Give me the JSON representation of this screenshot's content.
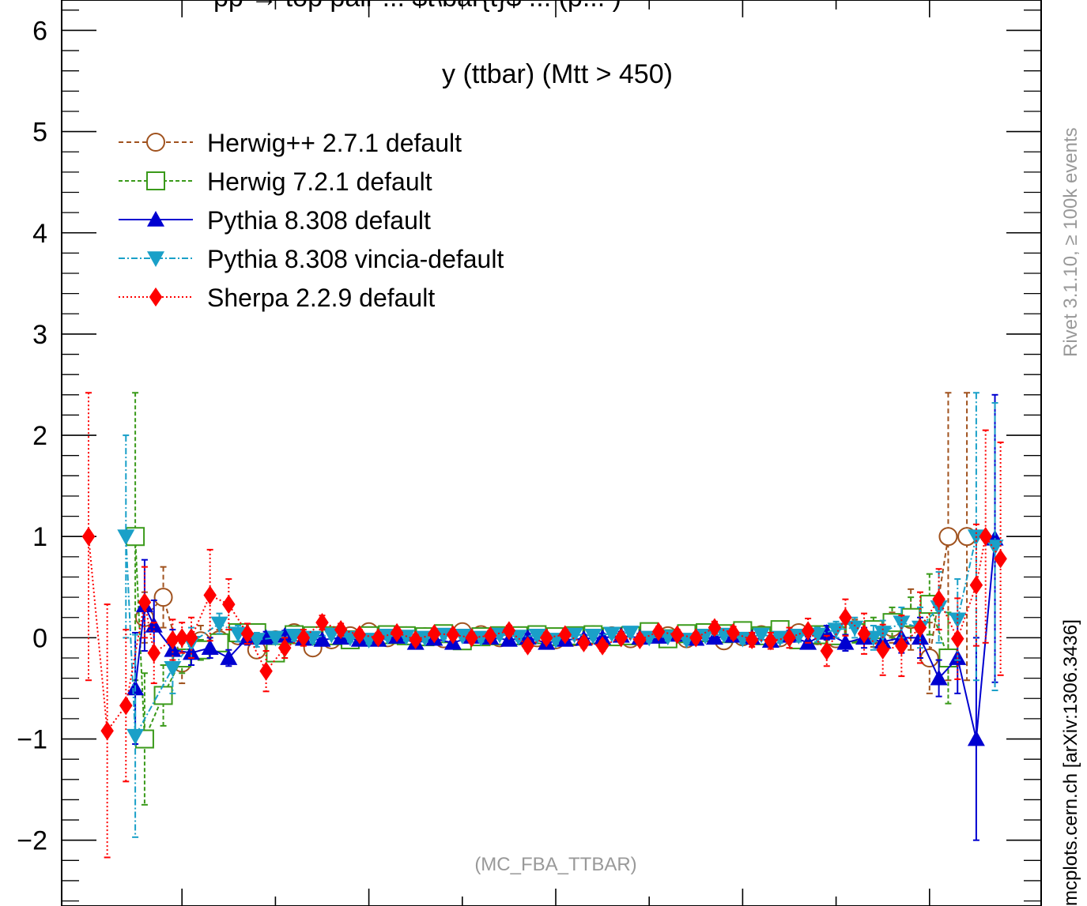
{
  "chart_data": {
    "type": "line",
    "title": "y (ttbar) (Mtt > 450)",
    "top_title_fragment": "pp → top pair ... $t\\bar{t}$ ... (p... )",
    "watermark_left": "(MC_FBA_TTBAR)",
    "side_label_top": "Rivet 3.1.10, ≥ 100k events",
    "side_label_bottom": "mcplots.cern.ch [arXiv:1306.3436]",
    "ylim": [
      -2.65,
      6.3
    ],
    "xlim": [
      -2.5,
      2.5
    ],
    "y_ticks": [
      -2,
      -1,
      0,
      1,
      2,
      3,
      4,
      5,
      6
    ],
    "y_tick_labels": [
      "−2",
      "−1",
      "0",
      "1",
      "2",
      "3",
      "4",
      "5",
      "6"
    ],
    "legend_position": "top-left",
    "series": [
      {
        "name": "Herwig++ 2.7.1 default",
        "color": "#a0521e",
        "marker": "circle-open",
        "dash": "6,4",
        "x": [
          -2.2,
          -2.1,
          -2.0,
          -1.9,
          -1.8,
          -1.7,
          -1.6,
          -1.5,
          -1.4,
          -1.3,
          -1.2,
          -1.1,
          -1.0,
          -0.9,
          -0.8,
          -0.7,
          -0.6,
          -0.5,
          -0.4,
          -0.3,
          -0.2,
          -0.1,
          0.0,
          0.1,
          0.2,
          0.3,
          0.4,
          0.5,
          0.6,
          0.7,
          0.8,
          0.9,
          1.0,
          1.1,
          1.2,
          1.3,
          1.4,
          1.5,
          1.6,
          1.7,
          1.8,
          1.9,
          2.0,
          2.1,
          2.2
        ],
        "y": [
          0.2,
          0.4,
          -0.25,
          -0.03,
          -0.02,
          0.02,
          -0.12,
          -0.02,
          0.05,
          -0.1,
          -0.02,
          0.02,
          0.06,
          0.0,
          0.02,
          0.01,
          -0.01,
          0.06,
          0.03,
          0.0,
          0.02,
          0.0,
          -0.02,
          0.01,
          0.03,
          0.02,
          -0.01,
          0.04,
          0.02,
          -0.01,
          0.05,
          -0.03,
          0.01,
          0.03,
          0.0,
          0.05,
          0.02,
          -0.01,
          0.08,
          0.03,
          0.1,
          0.18,
          -0.2,
          1.0,
          1.0
        ],
        "err": [
          0.25,
          0.3,
          0.2,
          0.15,
          0.1,
          0.08,
          0.08,
          0.06,
          0.05,
          0.05,
          0.04,
          0.04,
          0.04,
          0.04,
          0.04,
          0.04,
          0.04,
          0.04,
          0.04,
          0.04,
          0.04,
          0.04,
          0.04,
          0.04,
          0.04,
          0.04,
          0.04,
          0.04,
          0.04,
          0.04,
          0.04,
          0.04,
          0.04,
          0.05,
          0.05,
          0.06,
          0.08,
          0.08,
          0.1,
          0.12,
          0.15,
          0.3,
          0.35,
          1.42,
          1.42
        ]
      },
      {
        "name": "Herwig 7.2.1 default",
        "color": "#3a9a1a",
        "marker": "square-open",
        "dash": "5,3",
        "x": [
          -2.25,
          -2.2,
          -2.1,
          -2.0,
          -1.9,
          -1.8,
          -1.7,
          -1.6,
          -1.5,
          -1.4,
          -1.3,
          -1.2,
          -1.1,
          -1.0,
          -0.9,
          -0.8,
          -0.7,
          -0.6,
          -0.5,
          -0.4,
          -0.3,
          -0.2,
          -0.1,
          0.0,
          0.1,
          0.2,
          0.3,
          0.4,
          0.5,
          0.6,
          0.7,
          0.8,
          0.9,
          1.0,
          1.1,
          1.2,
          1.3,
          1.4,
          1.5,
          1.6,
          1.7,
          1.8,
          1.9,
          2.0,
          2.1
        ],
        "y": [
          1.0,
          -1.0,
          -0.57,
          -0.2,
          -0.12,
          -0.05,
          0.05,
          0.05,
          -0.15,
          0.03,
          0.02,
          0.02,
          -0.02,
          0.02,
          0.03,
          0.02,
          0.01,
          0.04,
          -0.03,
          0.01,
          0.02,
          0.02,
          0.03,
          0.01,
          0.02,
          0.03,
          0.01,
          0.02,
          0.06,
          -0.01,
          0.04,
          0.05,
          0.04,
          0.07,
          0.02,
          0.08,
          -0.02,
          0.03,
          0.02,
          0.05,
          0.08,
          0.15,
          0.2,
          0.33,
          -0.2
        ],
        "err": [
          1.42,
          0.65,
          0.3,
          0.15,
          0.1,
          0.08,
          0.07,
          0.06,
          0.06,
          0.05,
          0.05,
          0.04,
          0.04,
          0.04,
          0.04,
          0.04,
          0.04,
          0.04,
          0.04,
          0.04,
          0.04,
          0.04,
          0.04,
          0.04,
          0.04,
          0.04,
          0.04,
          0.04,
          0.04,
          0.04,
          0.04,
          0.04,
          0.04,
          0.05,
          0.05,
          0.05,
          0.06,
          0.07,
          0.08,
          0.1,
          0.12,
          0.15,
          0.2,
          0.3,
          0.45
        ]
      },
      {
        "name": "Pythia 8.308 default",
        "color": "#0000d0",
        "marker": "triangle-up",
        "dash": "",
        "x": [
          -2.25,
          -2.2,
          -2.15,
          -2.05,
          -1.95,
          -1.85,
          -1.75,
          -1.65,
          -1.55,
          -1.45,
          -1.35,
          -1.25,
          -1.15,
          -1.05,
          -0.95,
          -0.85,
          -0.75,
          -0.65,
          -0.55,
          -0.45,
          -0.35,
          -0.25,
          -0.15,
          -0.05,
          0.05,
          0.15,
          0.25,
          0.35,
          0.45,
          0.55,
          0.65,
          0.75,
          0.85,
          0.95,
          1.05,
          1.15,
          1.25,
          1.35,
          1.45,
          1.55,
          1.65,
          1.75,
          1.85,
          1.95,
          2.05,
          2.15,
          2.25,
          2.35
        ],
        "y": [
          -0.5,
          0.32,
          0.12,
          -0.12,
          -0.15,
          -0.1,
          -0.2,
          0.0,
          0.0,
          0.02,
          -0.01,
          -0.02,
          0.0,
          -0.02,
          -0.02,
          0.01,
          -0.05,
          -0.01,
          -0.05,
          0.01,
          0.0,
          -0.02,
          0.0,
          -0.05,
          -0.02,
          -0.01,
          0.0,
          0.02,
          0.0,
          0.01,
          0.03,
          -0.01,
          0.0,
          0.02,
          0.0,
          -0.03,
          0.02,
          -0.05,
          0.05,
          -0.05,
          0.0,
          -0.04,
          0.0,
          0.0,
          -0.4,
          -0.2,
          -1.0,
          0.98
        ],
        "err": [
          0.55,
          0.45,
          0.25,
          0.2,
          0.12,
          0.1,
          0.08,
          0.07,
          0.06,
          0.05,
          0.05,
          0.04,
          0.04,
          0.04,
          0.04,
          0.04,
          0.04,
          0.04,
          0.04,
          0.04,
          0.04,
          0.04,
          0.04,
          0.04,
          0.04,
          0.04,
          0.04,
          0.04,
          0.04,
          0.04,
          0.04,
          0.04,
          0.04,
          0.04,
          0.04,
          0.05,
          0.05,
          0.06,
          0.07,
          0.08,
          0.1,
          0.12,
          0.15,
          0.2,
          0.18,
          0.35,
          1.0,
          1.42
        ]
      },
      {
        "name": "Pythia 8.308 vincia-default",
        "color": "#1aa0c8",
        "marker": "triangle-down",
        "dash": "8,3,2,3",
        "x": [
          -2.3,
          -2.25,
          -2.05,
          -1.95,
          -1.8,
          -1.7,
          -1.6,
          -1.5,
          -1.4,
          -1.3,
          -1.2,
          -1.1,
          -1.0,
          -0.9,
          -0.8,
          -0.7,
          -0.6,
          -0.5,
          -0.4,
          -0.3,
          -0.2,
          -0.1,
          0.0,
          0.1,
          0.2,
          0.3,
          0.4,
          0.5,
          0.6,
          0.7,
          0.8,
          0.9,
          1.0,
          1.1,
          1.2,
          1.3,
          1.4,
          1.5,
          1.6,
          1.7,
          1.75,
          1.85,
          1.95,
          2.05,
          2.15,
          2.25,
          2.35
        ],
        "y": [
          1.0,
          -0.97,
          -0.3,
          -0.05,
          0.14,
          0.04,
          -0.02,
          0.0,
          0.02,
          0.0,
          0.03,
          0.0,
          -0.02,
          0.02,
          0.01,
          0.0,
          0.03,
          0.02,
          0.0,
          0.03,
          0.01,
          0.02,
          -0.02,
          0.03,
          0.02,
          0.04,
          0.05,
          0.0,
          0.01,
          -0.02,
          0.02,
          0.03,
          -0.01,
          0.03,
          0.0,
          0.02,
          0.03,
          0.08,
          0.1,
          0.0,
          0.05,
          0.15,
          0.1,
          0.3,
          0.18,
          1.0,
          0.9
        ],
        "err": [
          1.0,
          1.0,
          0.25,
          0.15,
          0.1,
          0.08,
          0.07,
          0.06,
          0.05,
          0.05,
          0.04,
          0.04,
          0.04,
          0.04,
          0.04,
          0.04,
          0.04,
          0.04,
          0.04,
          0.04,
          0.04,
          0.04,
          0.04,
          0.04,
          0.04,
          0.04,
          0.04,
          0.04,
          0.04,
          0.04,
          0.04,
          0.04,
          0.05,
          0.05,
          0.05,
          0.06,
          0.07,
          0.08,
          0.1,
          0.12,
          0.12,
          0.15,
          0.2,
          0.35,
          0.4,
          1.42,
          1.42
        ]
      },
      {
        "name": "Sherpa 2.2.9 default",
        "color": "#ff0000",
        "marker": "diamond",
        "dash": "2,3",
        "x": [
          -2.5,
          -2.4,
          -2.3,
          -2.2,
          -2.15,
          -2.05,
          -2.0,
          -1.95,
          -1.85,
          -1.75,
          -1.65,
          -1.55,
          -1.45,
          -1.35,
          -1.25,
          -1.15,
          -1.05,
          -0.95,
          -0.85,
          -0.75,
          -0.65,
          -0.55,
          -0.45,
          -0.35,
          -0.25,
          -0.15,
          -0.05,
          0.05,
          0.15,
          0.25,
          0.35,
          0.45,
          0.55,
          0.65,
          0.75,
          0.85,
          0.95,
          1.05,
          1.15,
          1.25,
          1.35,
          1.45,
          1.55,
          1.65,
          1.75,
          1.85,
          1.95,
          2.05,
          2.15,
          2.25,
          2.3,
          2.38
        ],
        "y": [
          1.0,
          -0.92,
          -0.67,
          0.35,
          -0.15,
          -0.02,
          0.0,
          0.0,
          0.42,
          0.33,
          0.04,
          -0.33,
          -0.1,
          0.0,
          0.15,
          0.08,
          0.03,
          0.0,
          0.05,
          -0.02,
          0.04,
          0.03,
          0.0,
          0.02,
          0.07,
          -0.08,
          0.0,
          0.03,
          -0.05,
          -0.08,
          0.0,
          -0.02,
          0.06,
          0.03,
          0.0,
          0.1,
          0.05,
          -0.02,
          -0.03,
          0.0,
          0.07,
          -0.13,
          0.2,
          0.04,
          -0.12,
          -0.08,
          0.1,
          0.38,
          -0.01,
          0.52,
          1.0,
          0.78
        ],
        "err": [
          1.42,
          1.25,
          0.75,
          0.35,
          0.3,
          0.2,
          0.15,
          0.2,
          0.45,
          0.25,
          0.1,
          0.2,
          0.1,
          0.08,
          0.07,
          0.06,
          0.05,
          0.05,
          0.05,
          0.05,
          0.05,
          0.05,
          0.05,
          0.05,
          0.05,
          0.05,
          0.05,
          0.05,
          0.05,
          0.05,
          0.05,
          0.05,
          0.05,
          0.05,
          0.05,
          0.06,
          0.06,
          0.07,
          0.08,
          0.1,
          0.12,
          0.15,
          0.18,
          0.2,
          0.25,
          0.3,
          0.35,
          0.3,
          0.4,
          0.6,
          1.05,
          1.15
        ]
      }
    ]
  }
}
